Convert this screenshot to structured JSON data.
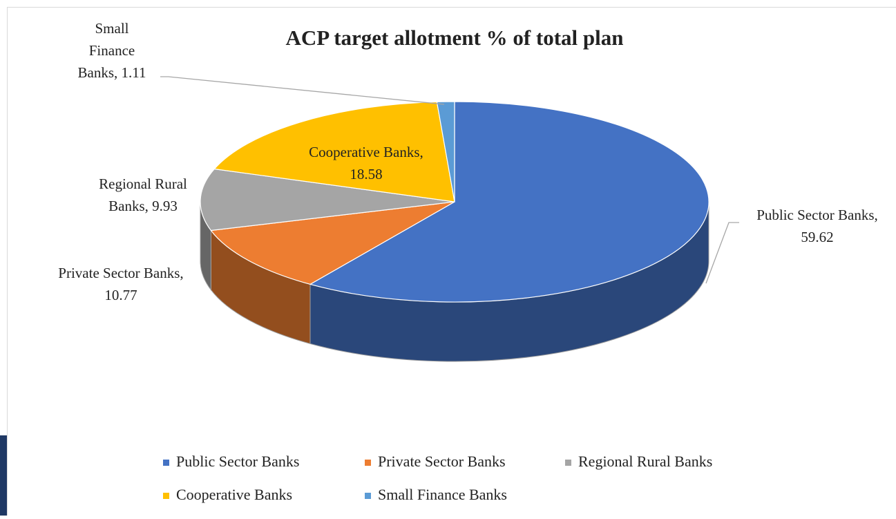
{
  "chart_data": {
    "type": "pie3d",
    "title": "ACP target allotment % of total plan",
    "categories": [
      "Public Sector Banks",
      "Private Sector Banks",
      "Regional Rural Banks",
      "Cooperative Banks",
      "Small Finance Banks"
    ],
    "values": [
      59.62,
      10.77,
      9.93,
      18.58,
      1.11
    ],
    "value_labels": [
      "Public Sector Banks, 59.62",
      "Private Sector Banks, 10.77",
      "Regional Rural Banks, 9.93",
      "Cooperative Banks, 18.58",
      "Small Finance Banks, 1.11"
    ],
    "colors": [
      "#4472c4",
      "#ed7d31",
      "#a5a5a5",
      "#ffc000",
      "#5b9bd5"
    ],
    "legend": "bottom"
  }
}
